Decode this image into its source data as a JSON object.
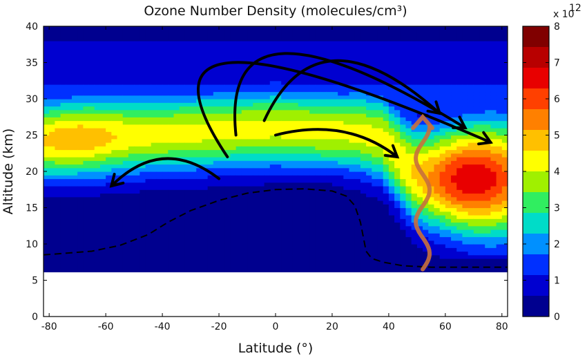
{
  "chart_data": {
    "type": "heatmap",
    "title": "Ozone Number Density (molecules/cm³)",
    "xlabel": "Latitude (°)",
    "ylabel": "Altitude (km)",
    "xlim": [
      -82,
      82
    ],
    "ylim": [
      0,
      40
    ],
    "data_altitude_min": 6,
    "x_ticks": [
      -80,
      -60,
      -40,
      -20,
      0,
      20,
      40,
      60,
      80
    ],
    "y_ticks": [
      0,
      5,
      10,
      15,
      20,
      25,
      30,
      35,
      40
    ],
    "grid": false,
    "colorbar": {
      "range": [
        0,
        8
      ],
      "exponent_label": "x 10",
      "exponent": "12",
      "ticks": [
        0,
        1,
        2,
        3,
        4,
        5,
        6,
        7,
        8
      ]
    },
    "colors": {
      "scale": [
        "#00008f",
        "#0000d0",
        "#0030ff",
        "#0090ff",
        "#00dcc8",
        "#30ee60",
        "#a0f000",
        "#ffff00",
        "#ffc000",
        "#ff8000",
        "#ff4000",
        "#e80000",
        "#b80000",
        "#800000"
      ],
      "arrows": "#000000",
      "rising_arrow": "#c8703c",
      "tropopause": "#000000"
    },
    "tropopause_line": {
      "lat": [
        -82,
        -65,
        -55,
        -45,
        -38,
        -30,
        -20,
        -10,
        0,
        10,
        20,
        25,
        28,
        30,
        31,
        32,
        34,
        38,
        45,
        55,
        65,
        75,
        82
      ],
      "alt": [
        8.5,
        9.0,
        9.8,
        11.3,
        13.0,
        14.6,
        16.0,
        17.0,
        17.5,
        17.6,
        17.3,
        16.6,
        15.3,
        13.0,
        11.0,
        9.0,
        8.0,
        7.5,
        7.0,
        6.8,
        6.8,
        6.8,
        6.8
      ]
    },
    "circulation_arrows": [
      {
        "from_lat": -20,
        "from_alt": 19.0,
        "ctrl_lat": -40,
        "ctrl_alt": 25.0,
        "to_lat": -58,
        "to_alt": 18.0
      },
      {
        "from_lat": 0,
        "from_alt": 25.0,
        "ctrl_lat": 25,
        "ctrl_alt": 27.5,
        "to_lat": 43,
        "to_alt": 22.0
      },
      {
        "from_lat": -17,
        "from_alt": 22.0,
        "ctrl_lat": -60,
        "ctrl_alt": 47.0,
        "to_lat": 76,
        "to_alt": 24.0
      },
      {
        "from_lat": -14,
        "from_alt": 25.0,
        "ctrl_lat": -20,
        "ctrl_alt": 47.0,
        "to_lat": 67,
        "to_alt": 26.0
      },
      {
        "from_lat": -4,
        "from_alt": 27.0,
        "ctrl_lat": 15,
        "ctrl_alt": 43.0,
        "to_lat": 58,
        "to_alt": 28.0
      }
    ],
    "rising_arrow": {
      "lat": 52,
      "alt_from": 6.5,
      "alt_to": 27.5
    }
  }
}
